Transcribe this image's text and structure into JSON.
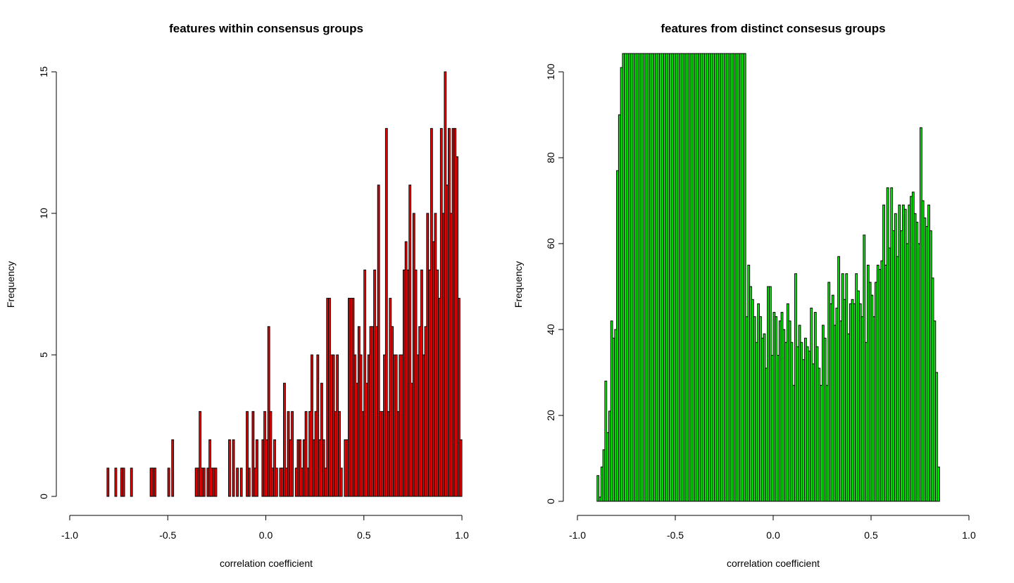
{
  "chart_data": [
    {
      "type": "bar",
      "title": "features within consensus groups",
      "xlabel": "correlation coefficient",
      "ylabel": "Frequency",
      "xlim": [
        -1.0,
        1.0
      ],
      "ylim": [
        0,
        15
      ],
      "xticks": [
        "-1.0",
        "-0.5",
        "0.0",
        "0.5",
        "1.0"
      ],
      "xtick_values": [
        -1.0,
        -0.5,
        0.0,
        0.5,
        1.0
      ],
      "yticks": [
        "0",
        "5",
        "10",
        "15"
      ],
      "ytick_values": [
        0,
        5,
        10,
        15
      ],
      "bin_width": 0.01,
      "bin_start": -0.81,
      "bar_color": "#ff0000",
      "values": [
        1,
        0,
        0,
        0,
        1,
        0,
        0,
        1,
        1,
        0,
        0,
        0,
        1,
        0,
        0,
        0,
        0,
        0,
        0,
        0,
        0,
        0,
        1,
        1,
        1,
        0,
        0,
        0,
        0,
        0,
        0,
        1,
        0,
        2,
        0,
        0,
        0,
        0,
        0,
        0,
        0,
        0,
        0,
        0,
        0,
        1,
        1,
        3,
        1,
        1,
        0,
        1,
        2,
        1,
        1,
        1,
        0,
        0,
        0,
        0,
        0,
        0,
        2,
        0,
        2,
        0,
        1,
        0,
        1,
        0,
        0,
        3,
        1,
        0,
        3,
        1,
        2,
        0,
        0,
        2,
        3,
        2,
        6,
        3,
        1,
        2,
        1,
        0,
        1,
        1,
        4,
        1,
        3,
        2,
        3,
        0,
        1,
        2,
        2,
        1,
        2,
        3,
        1,
        3,
        5,
        2,
        3,
        5,
        2,
        4,
        2,
        1,
        7,
        7,
        5,
        5,
        3,
        5,
        3,
        1,
        0,
        2,
        2,
        7,
        7,
        7,
        5,
        4,
        6,
        5,
        3,
        8,
        4,
        5,
        6,
        6,
        8,
        6,
        11,
        3,
        3,
        5,
        13,
        3,
        7,
        6,
        5,
        5,
        3,
        5,
        5,
        8,
        9,
        8,
        11,
        4,
        10,
        8,
        5,
        6,
        8,
        5,
        6,
        10,
        8,
        13,
        9,
        10,
        8,
        7,
        13,
        10,
        15,
        11,
        13,
        10,
        13,
        13,
        12,
        7,
        2
      ]
    },
    {
      "type": "bar",
      "title": "features from distinct consesus groups",
      "xlabel": "correlation coefficient",
      "ylabel": "Frequency",
      "xlim": [
        -1.0,
        1.0
      ],
      "ylim": [
        0,
        104
      ],
      "xticks": [
        "-1.0",
        "-0.5",
        "0.0",
        "0.5",
        "1.0"
      ],
      "xtick_values": [
        -1.0,
        -0.5,
        0.0,
        0.5,
        1.0
      ],
      "yticks": [
        "0",
        "20",
        "40",
        "60",
        "80",
        "100"
      ],
      "ytick_values": [
        0,
        20,
        40,
        60,
        80,
        100
      ],
      "bin_width": 0.01,
      "bin_start": -0.9,
      "bar_color": "#00ff00",
      "values": [
        6,
        1,
        8,
        12,
        28,
        16,
        21,
        42,
        38,
        40,
        77,
        90,
        101,
        110,
        110,
        110,
        110,
        110,
        110,
        110,
        110,
        110,
        110,
        110,
        110,
        110,
        110,
        110,
        110,
        110,
        110,
        110,
        110,
        110,
        110,
        110,
        110,
        110,
        110,
        110,
        110,
        110,
        110,
        110,
        110,
        110,
        110,
        110,
        110,
        110,
        110,
        110,
        110,
        110,
        110,
        110,
        110,
        110,
        110,
        110,
        110,
        110,
        110,
        110,
        110,
        110,
        110,
        110,
        110,
        110,
        110,
        110,
        110,
        110,
        110,
        110,
        43,
        55,
        50,
        47,
        43,
        37,
        46,
        43,
        38,
        39,
        31,
        50,
        50,
        34,
        44,
        43,
        34,
        42,
        44,
        40,
        37,
        46,
        42,
        37,
        27,
        53,
        36,
        41,
        37,
        33,
        38,
        36,
        35,
        45,
        32,
        44,
        36,
        31,
        27,
        41,
        38,
        27,
        51,
        46,
        48,
        41,
        45,
        57,
        42,
        53,
        47,
        53,
        39,
        46,
        47,
        46,
        53,
        49,
        46,
        43,
        62,
        37,
        55,
        51,
        48,
        43,
        51,
        55,
        54,
        56,
        69,
        55,
        73,
        59,
        73,
        63,
        67,
        57,
        69,
        63,
        69,
        68,
        60,
        69,
        71,
        72,
        67,
        65,
        60,
        87,
        70,
        66,
        64,
        69,
        63,
        52,
        42,
        30,
        8
      ]
    }
  ]
}
